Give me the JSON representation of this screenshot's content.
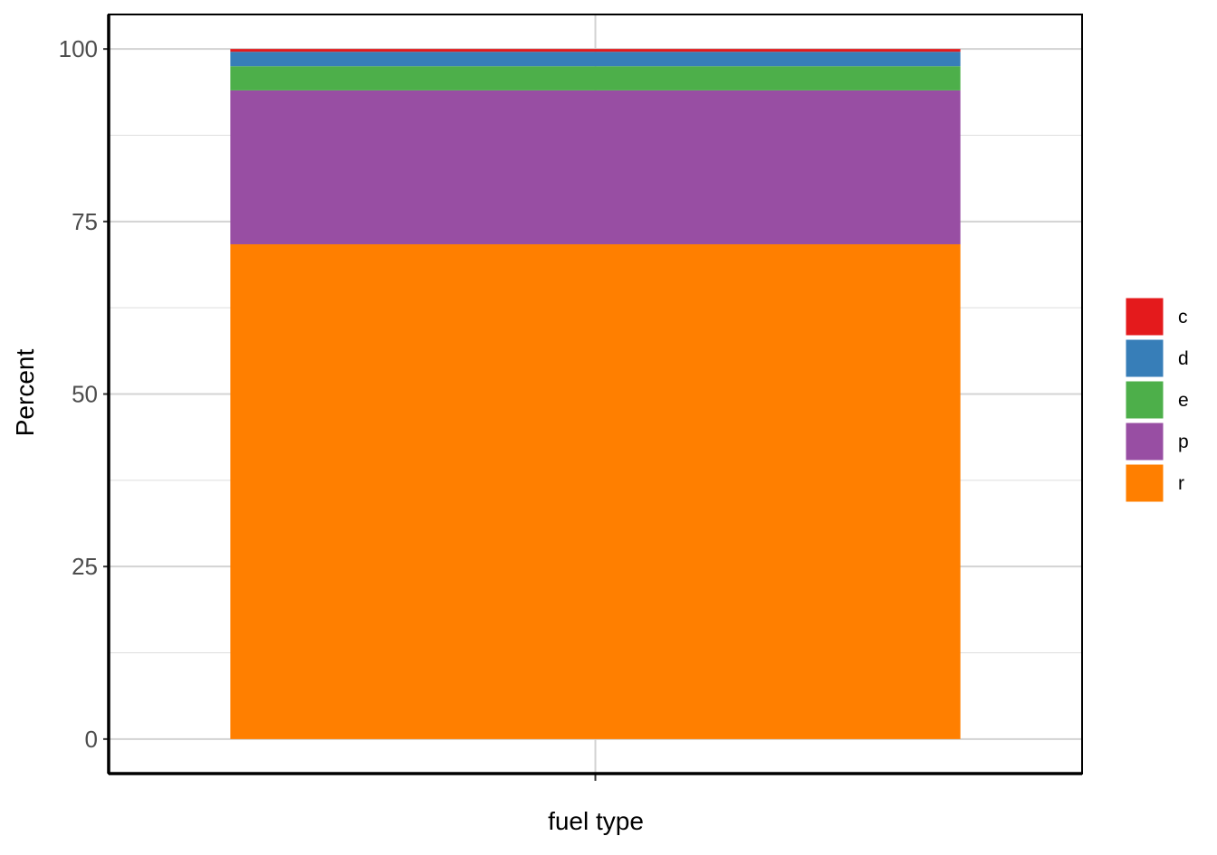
{
  "chart_data": {
    "type": "bar",
    "stacked": true,
    "percent": true,
    "categories": [
      ""
    ],
    "xlabel": "fuel type",
    "ylabel": "Percent",
    "ylim": [
      -5,
      105
    ],
    "yticks": [
      0,
      25,
      50,
      75,
      100
    ],
    "y_minor_ticks": [
      12.5,
      37.5,
      62.5,
      87.5
    ],
    "grid": true,
    "legend_position": "right",
    "stack_order_bottom_to_top": [
      "r",
      "p",
      "e",
      "d",
      "c"
    ],
    "series": [
      {
        "name": "c",
        "values": [
          0.4
        ],
        "color": "#E41A1C"
      },
      {
        "name": "d",
        "values": [
          2.1
        ],
        "color": "#377EB8"
      },
      {
        "name": "e",
        "values": [
          3.5
        ],
        "color": "#4DAF4A"
      },
      {
        "name": "p",
        "values": [
          22.3
        ],
        "color": "#984EA3"
      },
      {
        "name": "r",
        "values": [
          71.7
        ],
        "color": "#FF7F00"
      }
    ]
  }
}
